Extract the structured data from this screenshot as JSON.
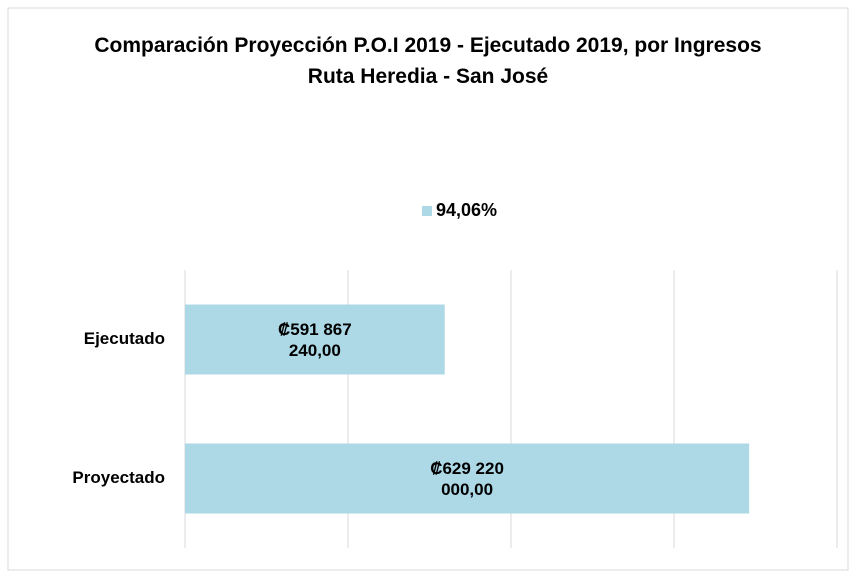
{
  "chart_data": {
    "type": "bar",
    "orientation": "horizontal",
    "title": "Comparación Proyección P.O.I 2019 - Ejecutado 2019, por Ingresos Ruta Heredia - San José",
    "categories": [
      "Ejecutado",
      "Proyectado"
    ],
    "series": [
      {
        "name": "94,06%",
        "color": "#add8e6",
        "values": [
          591867240,
          629220000
        ],
        "value_labels": [
          "₡591 867 240,00",
          "₡629 220 000,00"
        ]
      }
    ],
    "xlim": [
      560000000,
      640000000
    ],
    "xticks": [
      560000000,
      580000000,
      600000000,
      620000000,
      640000000
    ],
    "grid": true,
    "legend": "top"
  }
}
